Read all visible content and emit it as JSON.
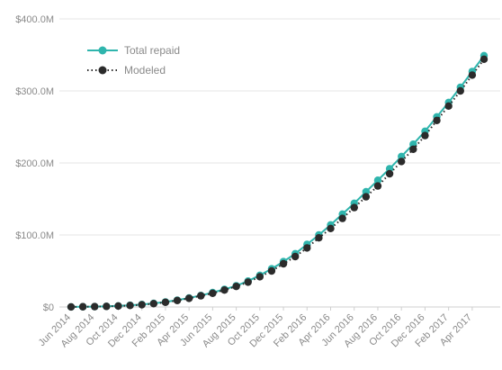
{
  "chart_data": {
    "type": "line",
    "title": "",
    "xlabel": "",
    "ylabel": "",
    "ylim": [
      0,
      400
    ],
    "y_unit": "millions of dollars",
    "y_ticks": [
      0,
      100,
      200,
      300,
      400
    ],
    "y_tick_labels": [
      "$0",
      "$100.0M",
      "$200.0M",
      "$300.0M",
      "$400.0M"
    ],
    "grid": "horizontal",
    "legend_position": "top-left",
    "x": [
      "Jun 2014",
      "Jul 2014",
      "Aug 2014",
      "Sep 2014",
      "Oct 2014",
      "Nov 2014",
      "Dec 2014",
      "Jan 2015",
      "Feb 2015",
      "Mar 2015",
      "Apr 2015",
      "May 2015",
      "Jun 2015",
      "Jul 2015",
      "Aug 2015",
      "Sep 2015",
      "Oct 2015",
      "Nov 2015",
      "Dec 2015",
      "Jan 2016",
      "Feb 2016",
      "Mar 2016",
      "Apr 2016",
      "May 2016",
      "Jun 2016",
      "Jul 2016",
      "Aug 2016",
      "Sep 2016",
      "Oct 2016",
      "Nov 2016",
      "Dec 2016",
      "Jan 2017",
      "Feb 2017",
      "Mar 2017",
      "Apr 2017",
      "May 2017"
    ],
    "x_tick_labels": [
      "Jun 2014",
      "Aug 2014",
      "Oct 2014",
      "Dec 2014",
      "Feb 2015",
      "Apr 2015",
      "Jun 2015",
      "Aug 2015",
      "Oct 2015",
      "Dec 2015",
      "Feb 2016",
      "Apr 2016",
      "Jun 2016",
      "Aug 2016",
      "Oct 2016",
      "Dec 2016",
      "Feb 2017",
      "Apr 2017"
    ],
    "series": [
      {
        "name": "Total repaid",
        "color": "#2fb5ad",
        "line_style": "solid",
        "values": [
          0.1,
          0.3,
          0.5,
          0.9,
          1.5,
          2.4,
          3.5,
          5.0,
          7.0,
          9.5,
          12.5,
          16,
          20,
          24.5,
          29.5,
          36,
          44,
          53,
          63,
          74,
          87,
          100,
          114,
          129,
          144,
          160,
          176,
          192,
          209,
          226,
          244,
          264,
          284,
          305,
          327,
          349
        ]
      },
      {
        "name": "Modeled",
        "color": "#2b2b2b",
        "line_style": "dotted",
        "values": [
          0.1,
          0.3,
          0.5,
          0.8,
          1.3,
          2.1,
          3.1,
          4.6,
          6.5,
          9.0,
          12,
          15.5,
          19,
          23.5,
          28.5,
          34.5,
          42,
          50,
          60,
          70,
          82,
          96,
          109,
          123,
          138,
          153,
          168,
          185,
          202,
          219,
          238,
          259,
          279,
          300,
          322,
          344
        ]
      }
    ]
  }
}
